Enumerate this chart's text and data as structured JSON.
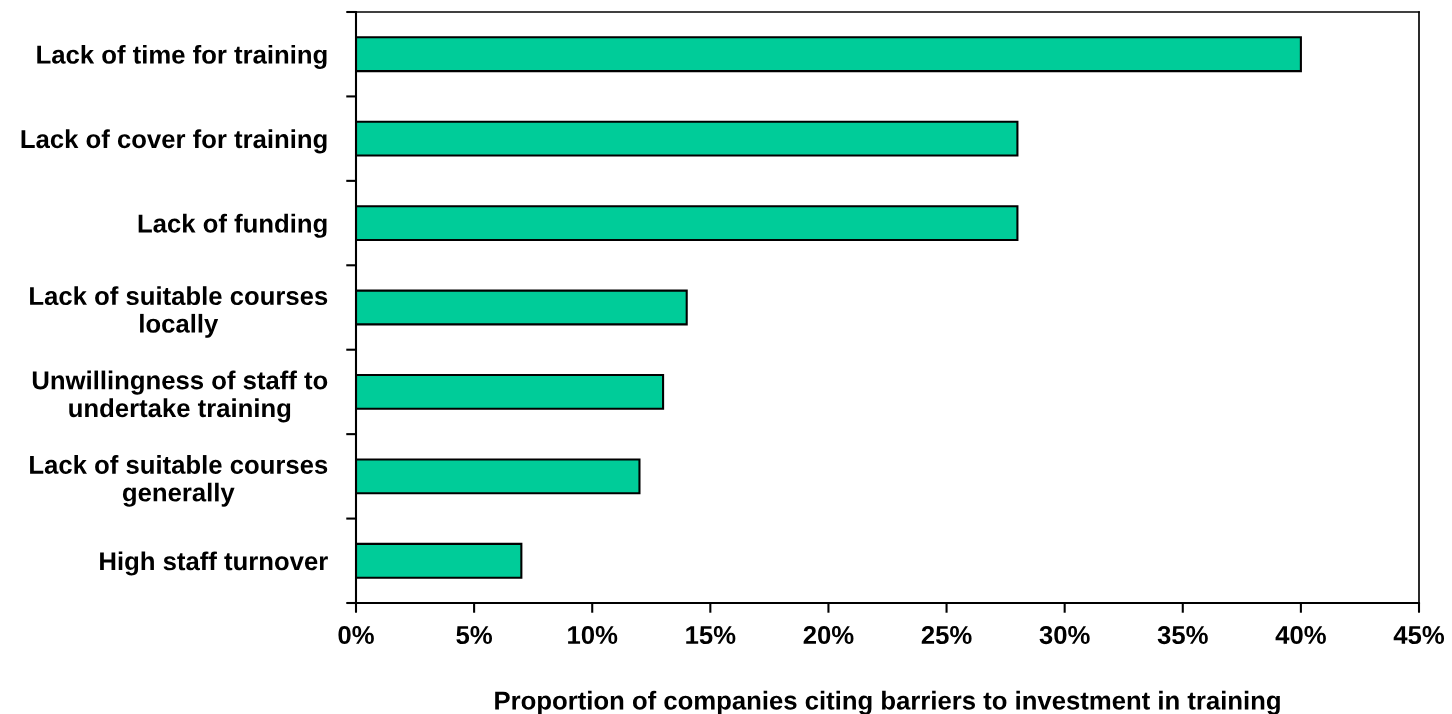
{
  "chart_data": {
    "type": "bar",
    "orientation": "horizontal",
    "xlabel": "Proportion of companies citing barriers to investment in training",
    "categories": [
      "Lack of time for training",
      "Lack of cover for training",
      "Lack of funding",
      "Lack of suitable courses\nlocally",
      "Unwillingness of staff to\nundertake training",
      "Lack of suitable courses\ngenerally",
      "High staff turnover"
    ],
    "values": [
      40,
      28,
      28,
      14,
      13,
      12,
      7
    ],
    "color": "#00cc99",
    "xlim": [
      0,
      45
    ],
    "xticks": [
      {
        "value": 0,
        "label": "0%"
      },
      {
        "value": 5,
        "label": "5%"
      },
      {
        "value": 10,
        "label": "10%"
      },
      {
        "value": 15,
        "label": "15%"
      },
      {
        "value": 20,
        "label": "20%"
      },
      {
        "value": 25,
        "label": "25%"
      },
      {
        "value": 30,
        "label": "30%"
      },
      {
        "value": 35,
        "label": "35%"
      },
      {
        "value": 40,
        "label": "40%"
      },
      {
        "value": 45,
        "label": "45%"
      }
    ]
  }
}
